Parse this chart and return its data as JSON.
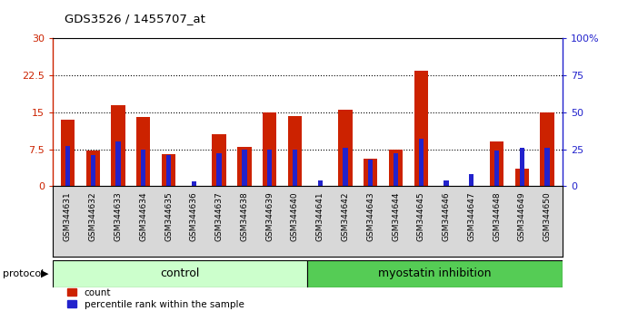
{
  "title": "GDS3526 / 1455707_at",
  "samples": [
    "GSM344631",
    "GSM344632",
    "GSM344633",
    "GSM344634",
    "GSM344635",
    "GSM344636",
    "GSM344637",
    "GSM344638",
    "GSM344639",
    "GSM344640",
    "GSM344641",
    "GSM344642",
    "GSM344643",
    "GSM344644",
    "GSM344645",
    "GSM344646",
    "GSM344647",
    "GSM344648",
    "GSM344649",
    "GSM344650"
  ],
  "count_values": [
    13.5,
    7.2,
    16.5,
    14.0,
    6.5,
    0.0,
    10.5,
    8.0,
    15.0,
    14.2,
    0.0,
    15.5,
    5.5,
    7.5,
    23.5,
    0.0,
    0.0,
    9.0,
    3.5,
    15.0
  ],
  "percentile_values": [
    27,
    21,
    30,
    25,
    21,
    3,
    22,
    25,
    25,
    25,
    4,
    26,
    18,
    22,
    32,
    4,
    8,
    24,
    26,
    26
  ],
  "control_count": 10,
  "bar_color_red": "#cc2200",
  "bar_color_blue": "#2222cc",
  "left_ylim": [
    0,
    30
  ],
  "right_ylim": [
    0,
    100
  ],
  "left_yticks": [
    0,
    7.5,
    15,
    22.5,
    30
  ],
  "right_yticks": [
    0,
    25,
    50,
    75,
    100
  ],
  "right_yticklabels": [
    "0",
    "25",
    "50",
    "75",
    "100%"
  ],
  "left_yticklabels": [
    "0",
    "7.5",
    "15",
    "22.5",
    "30"
  ],
  "group1_label": "control",
  "group2_label": "myostatin inhibition",
  "protocol_label": "protocol",
  "legend_count": "count",
  "legend_percentile": "percentile rank within the sample",
  "bg_color_plot": "#ffffff",
  "bg_color_xaxis": "#d8d8d8",
  "bg_color_control": "#ccffcc",
  "bg_color_myostatin": "#55cc55",
  "dotted_lines": [
    7.5,
    15,
    22.5
  ]
}
